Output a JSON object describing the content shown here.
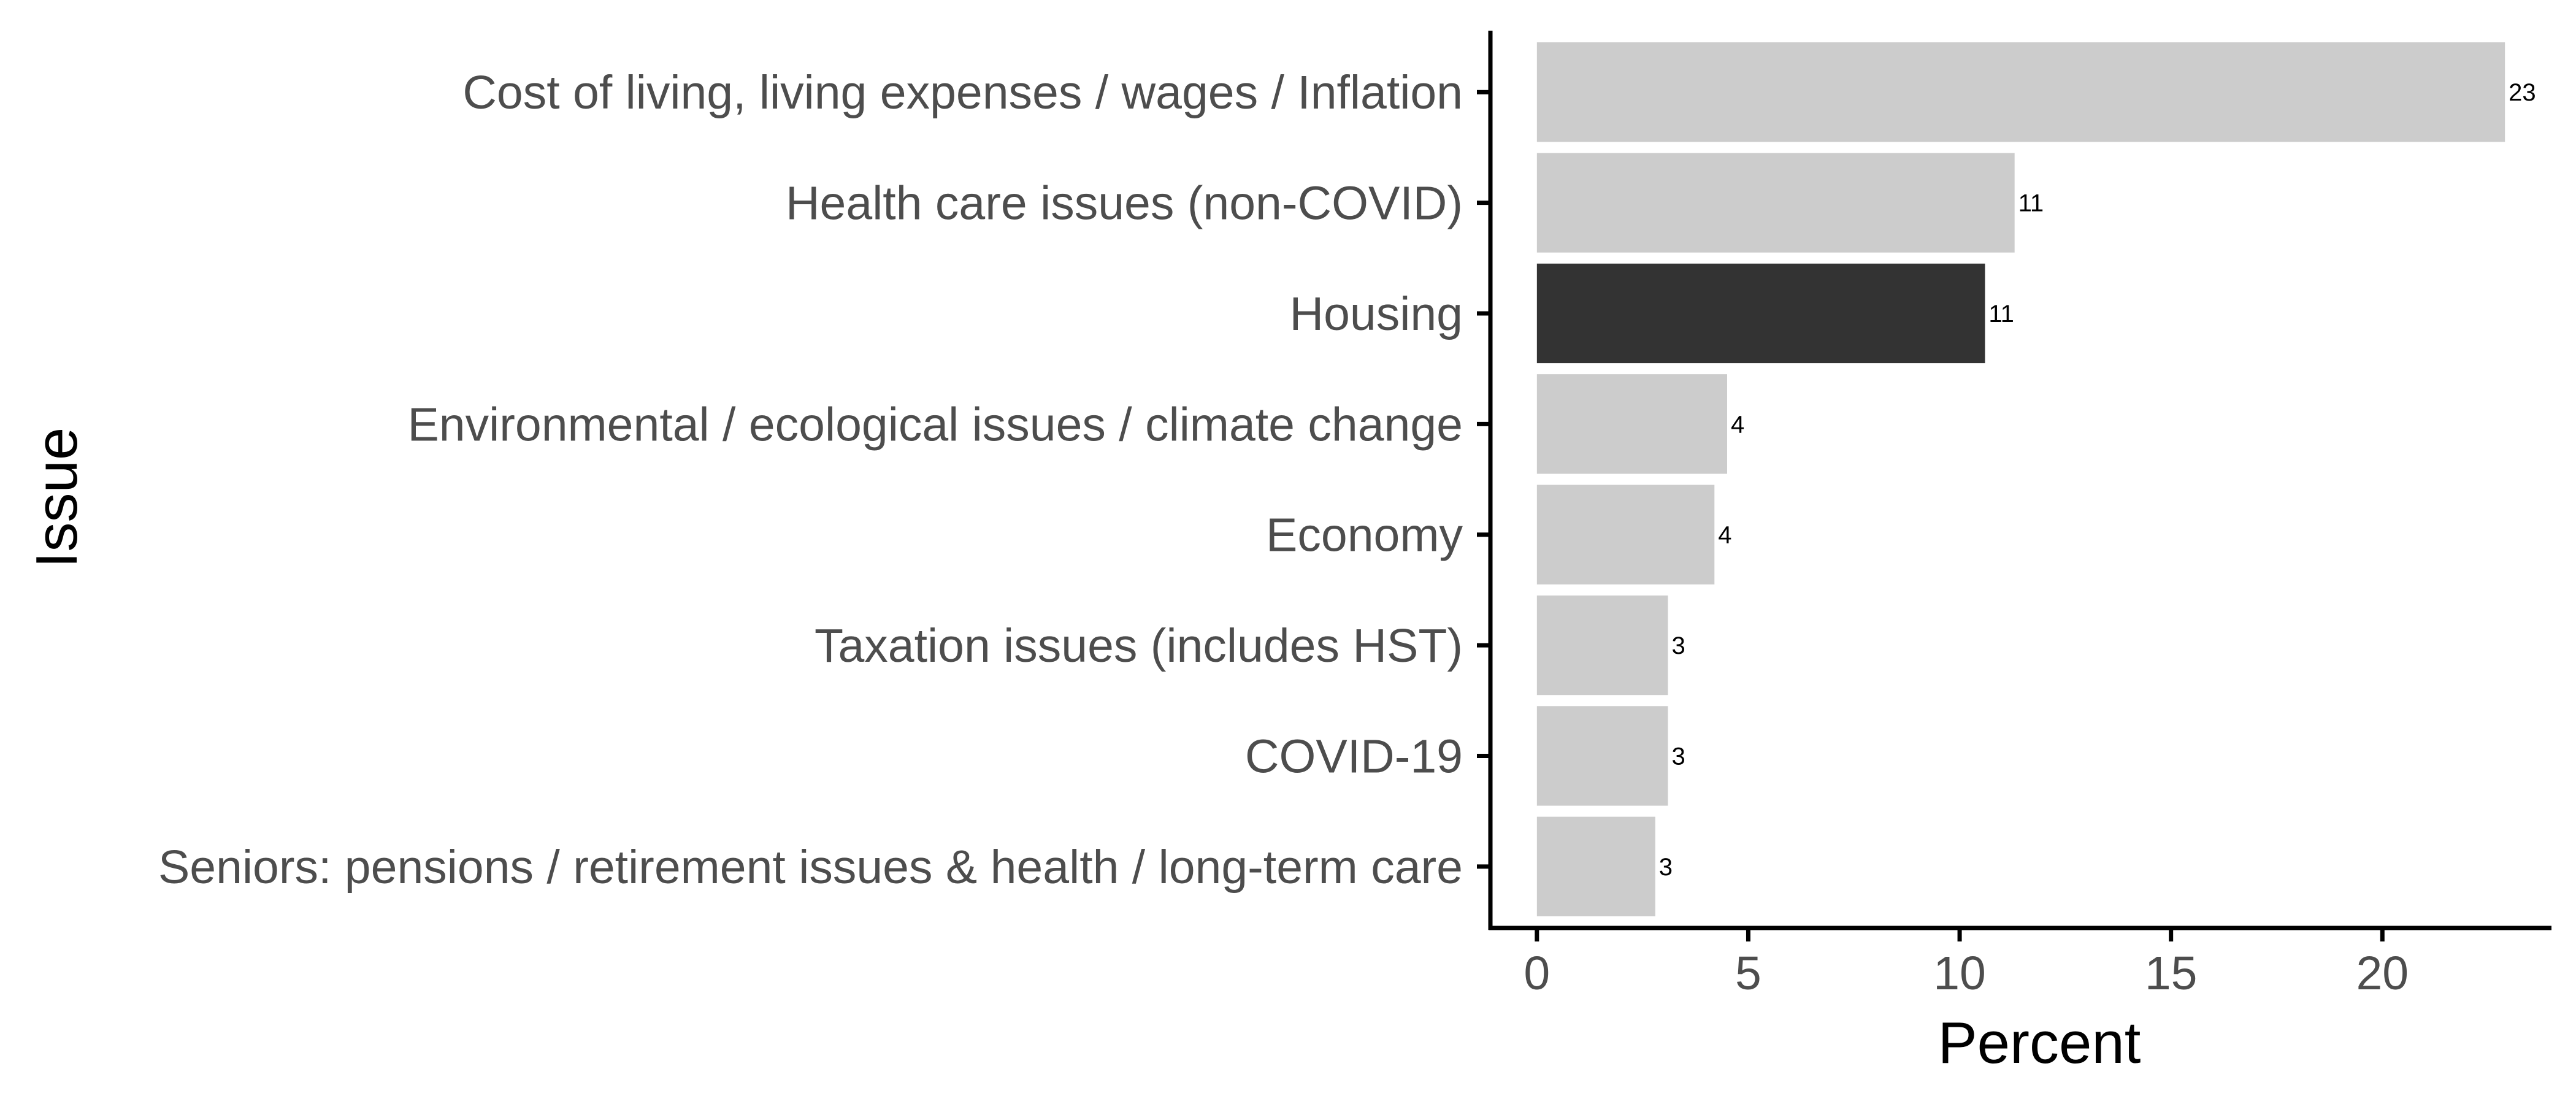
{
  "chart_data": {
    "type": "bar",
    "orientation": "horizontal",
    "title": "",
    "xlabel": "Percent",
    "ylabel": "Issue",
    "xlim": [
      -1.1,
      24.0
    ],
    "x_ticks": [
      0,
      5,
      10,
      15,
      20
    ],
    "x_tick_labels": [
      "0",
      "5",
      "10",
      "15",
      "20"
    ],
    "grid": false,
    "legend": "none",
    "categories": [
      "Cost of living, living expenses / wages / Inflation",
      "Health care issues (non-COVID)",
      "Housing",
      "Environmental / ecological issues / climate change",
      "Economy",
      "Taxation issues (includes HST)",
      "COVID-19",
      "Seniors: pensions / retirement issues & health / long-term care"
    ],
    "values": [
      22.9,
      11.3,
      10.6,
      4.5,
      4.2,
      3.1,
      3.1,
      2.8
    ],
    "data_labels": [
      "23",
      "11",
      "11",
      "4",
      "4",
      "3",
      "3",
      "3"
    ],
    "highlighted": [
      "Housing"
    ],
    "colors": {
      "default_bar": "#cccccc",
      "highlight_bar": "#333333",
      "axis_line": "#000000",
      "tick_label": "#4d4d4d"
    }
  }
}
